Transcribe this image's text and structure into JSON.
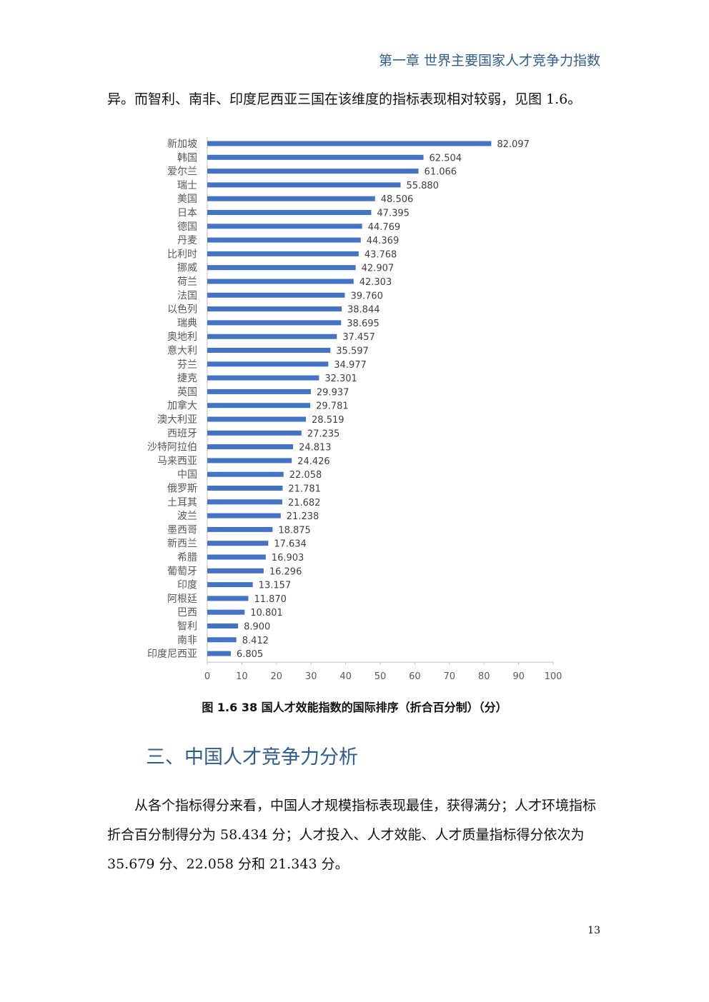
{
  "header": {
    "chapter_title": "第一章  世界主要国家人才竞争力指数"
  },
  "intro_text": "异。而智利、南非、印度尼西亚三国在该维度的指标表现相对较弱，见图 1.6。",
  "chart_data": {
    "type": "bar",
    "orientation": "horizontal",
    "categories": [
      "新加坡",
      "韩国",
      "爱尔兰",
      "瑞士",
      "美国",
      "日本",
      "德国",
      "丹麦",
      "比利时",
      "挪威",
      "荷兰",
      "法国",
      "以色列",
      "瑞典",
      "奥地利",
      "意大利",
      "芬兰",
      "捷克",
      "英国",
      "加拿大",
      "澳大利亚",
      "西班牙",
      "沙特阿拉伯",
      "马来西亚",
      "中国",
      "俄罗斯",
      "土耳其",
      "波兰",
      "墨西哥",
      "新西兰",
      "希腊",
      "葡萄牙",
      "印度",
      "阿根廷",
      "巴西",
      "智利",
      "南非",
      "印度尼西亚"
    ],
    "values": [
      82.097,
      62.504,
      61.066,
      55.88,
      48.506,
      47.395,
      44.769,
      44.369,
      43.768,
      42.907,
      42.303,
      39.76,
      38.844,
      38.695,
      37.457,
      35.597,
      34.977,
      32.301,
      29.937,
      29.781,
      28.519,
      27.235,
      24.813,
      24.426,
      22.058,
      21.781,
      21.682,
      21.238,
      18.875,
      17.634,
      16.903,
      16.296,
      13.157,
      11.87,
      10.801,
      8.9,
      8.412,
      6.805
    ],
    "value_labels": [
      "82.097",
      "62.504",
      "61.066",
      "55.880",
      "48.506",
      "47.395",
      "44.769",
      "44.369",
      "43.768",
      "42.907",
      "42.303",
      "39.760",
      "38.844",
      "38.695",
      "37.457",
      "35.597",
      "34.977",
      "32.301",
      "29.937",
      "29.781",
      "28.519",
      "27.235",
      "24.813",
      "24.426",
      "22.058",
      "21.781",
      "21.682",
      "21.238",
      "18.875",
      "17.634",
      "16.903",
      "16.296",
      "13.157",
      "11.870",
      "10.801",
      "8.900",
      "8.412",
      "6.805"
    ],
    "x_ticks": [
      "0",
      "10",
      "20",
      "30",
      "40",
      "50",
      "60",
      "70",
      "80",
      "90",
      "100"
    ],
    "xlim": [
      0,
      100
    ],
    "bar_color": "#4472c4",
    "grid": false
  },
  "caption": "图 1.6   38 国人才效能指数的国际排序（折合百分制）（分）",
  "section_heading": "三、中国人才竞争力分析",
  "body_text": "从各个指标得分来看，中国人才规模指标表现最佳，获得满分；人才环境指标折合百分制得分为 58.434 分；人才投入、人才效能、人才质量指标得分依次为 35.679 分、22.058 分和 21.343 分。",
  "page_number": "13"
}
